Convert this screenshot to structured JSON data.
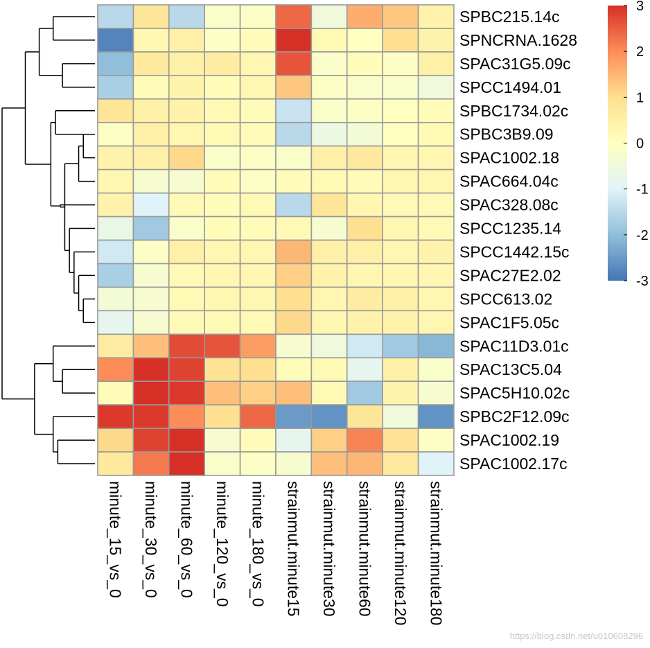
{
  "chart_data": {
    "type": "heatmap",
    "title": "",
    "rows": [
      "SPBC215.14c",
      "SPNCRNA.1628",
      "SPAC31G5.09c",
      "SPCC1494.01",
      "SPBC1734.02c",
      "SPBC3B9.09",
      "SPAC1002.18",
      "SPAC664.04c",
      "SPAC328.08c",
      "SPCC1235.14",
      "SPCC1442.15c",
      "SPAC27E2.02",
      "SPCC613.02",
      "SPAC1F5.05c",
      "SPAC11D3.01c",
      "SPAC13C5.04",
      "SPAC5H10.02c",
      "SPBC2F12.09c",
      "SPAC1002.19",
      "SPAC1002.17c"
    ],
    "columns": [
      "minute_15_vs_0",
      "minute_30_vs_0",
      "minute_60_vs_0",
      "minute_120_vs_0",
      "minute_180_vs_0",
      "strainmut.minute15",
      "strainmut.minute30",
      "strainmut.minute60",
      "strainmut.minute120",
      "strainmut.minute180"
    ],
    "values": [
      [
        -1.5,
        0.8,
        -1.5,
        -0.2,
        -0.1,
        2.4,
        -0.5,
        1.6,
        1.3,
        0.4
      ],
      [
        -2.8,
        0.3,
        0.5,
        -0.1,
        0.1,
        3.0,
        0.2,
        0.0,
        1.0,
        0.4
      ],
      [
        -2.0,
        0.7,
        0.5,
        0.6,
        0.3,
        2.6,
        -0.2,
        0.1,
        -0.1,
        0.5
      ],
      [
        -1.7,
        0.1,
        0.4,
        0.1,
        0.3,
        1.3,
        -0.1,
        -0.2,
        -0.2,
        -0.5
      ],
      [
        0.8,
        0.5,
        0.4,
        0.2,
        0.1,
        -1.3,
        -0.2,
        -0.1,
        0.0,
        0.1
      ],
      [
        -0.1,
        0.5,
        0.3,
        0.2,
        0.1,
        -1.5,
        -0.6,
        -0.4,
        0.0,
        0.2
      ],
      [
        0.4,
        0.5,
        1.1,
        -0.2,
        -0.1,
        -0.2,
        0.5,
        0.7,
        0.3,
        0.3
      ],
      [
        0.3,
        -0.3,
        -0.3,
        0.1,
        -0.1,
        0.1,
        0.2,
        0.1,
        0.3,
        0.3
      ],
      [
        0.4,
        -1.0,
        0.2,
        0.1,
        0.2,
        -1.5,
        0.8,
        0.3,
        0.2,
        0.2
      ],
      [
        -0.7,
        -1.8,
        -0.2,
        0.1,
        0.1,
        0.2,
        -0.3,
        1.0,
        0.3,
        0.2
      ],
      [
        -1.2,
        -0.1,
        0.5,
        0.3,
        0.3,
        1.5,
        0.5,
        0.5,
        0.3,
        0.4
      ],
      [
        -1.7,
        -0.3,
        0.2,
        0.3,
        0.3,
        1.2,
        0.4,
        0.3,
        0.3,
        0.3
      ],
      [
        -0.4,
        -0.3,
        0.2,
        0.3,
        0.3,
        1.0,
        0.3,
        0.6,
        0.5,
        0.3
      ],
      [
        -0.8,
        -0.3,
        0.2,
        0.2,
        0.2,
        1.1,
        0.3,
        0.4,
        0.4,
        0.3
      ],
      [
        0.6,
        1.4,
        2.7,
        2.6,
        1.8,
        -0.3,
        -0.5,
        -1.2,
        -1.8,
        -2.1
      ],
      [
        2.0,
        3.0,
        2.8,
        0.9,
        1.0,
        0.1,
        0.2,
        -0.8,
        0.5,
        -0.2
      ],
      [
        0.1,
        3.0,
        2.9,
        1.4,
        1.2,
        1.4,
        0.2,
        -1.8,
        0.4,
        -0.3
      ],
      [
        2.9,
        2.9,
        2.0,
        1.0,
        2.4,
        -2.5,
        -2.6,
        0.8,
        -0.5,
        -2.6
      ],
      [
        1.1,
        2.8,
        3.0,
        -0.3,
        0.1,
        -0.8,
        1.2,
        2.1,
        0.9,
        -0.1
      ],
      [
        0.7,
        2.2,
        3.0,
        -0.2,
        -0.1,
        -0.3,
        1.4,
        1.5,
        0.7,
        -1.0
      ]
    ],
    "scale": {
      "min": -3,
      "max": 3,
      "ticks": [
        3,
        2,
        1,
        0,
        -1,
        -2,
        -3
      ]
    },
    "palette": [
      "#4575B4",
      "#91BFDB",
      "#E0F3F8",
      "#FFFFBF",
      "#FEE090",
      "#FC8D59",
      "#D73027"
    ],
    "cell_border_color": "#999999",
    "row_dendrogram": {
      "merges": [
        [
          6,
          7,
          0.25
        ],
        [
          8,
          21,
          0.35
        ],
        [
          13,
          14,
          0.25
        ],
        [
          12,
          23,
          0.35
        ],
        [
          11,
          24,
          0.45
        ],
        [
          10,
          25,
          0.55
        ],
        [
          22,
          26,
          0.65
        ],
        [
          9,
          27,
          0.75
        ],
        [
          5,
          6,
          0.85
        ],
        [
          29,
          28,
          0.95
        ],
        [
          3,
          4,
          0.7
        ],
        [
          1,
          2,
          0.9
        ],
        [
          32,
          31,
          1.2
        ],
        [
          33,
          30,
          1.5
        ],
        [
          19,
          20,
          0.8
        ],
        [
          18,
          35,
          0.9
        ],
        [
          16,
          17,
          0.7
        ],
        [
          37,
          15,
          0.9
        ],
        [
          38,
          36,
          1.3
        ],
        [
          34,
          39,
          2.0
        ]
      ]
    },
    "legend_placement": "right"
  },
  "watermark": "https://blog.csdn.net/u010608296"
}
